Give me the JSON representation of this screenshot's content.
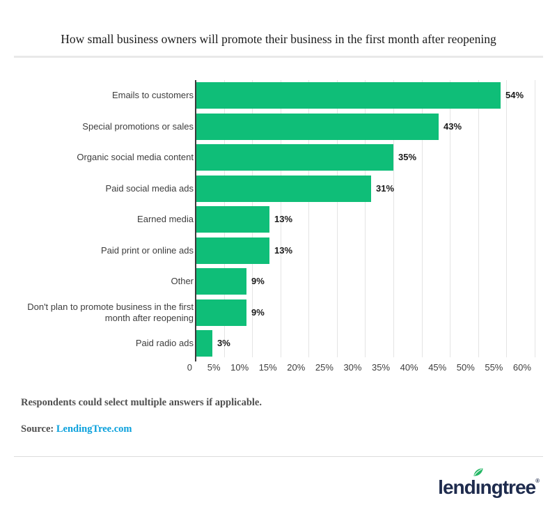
{
  "title": "How small business owners will promote their business in the first month after reopening",
  "chart_data": {
    "type": "bar",
    "orientation": "horizontal",
    "title": "How small business owners will promote their business in the first month after reopening",
    "categories": [
      "Emails to customers",
      "Special promotions or sales",
      "Organic social media content",
      "Paid social media ads",
      "Earned media",
      "Paid print or online ads",
      "Other",
      "Don't plan to promote business in the first month after reopening",
      "Paid radio ads"
    ],
    "values": [
      54,
      43,
      35,
      31,
      13,
      13,
      9,
      9,
      3
    ],
    "value_labels": [
      "54%",
      "43%",
      "35%",
      "31%",
      "13%",
      "13%",
      "9%",
      "9%",
      "3%"
    ],
    "xlabel": "",
    "ylabel": "",
    "xlim": [
      0,
      60
    ],
    "x_tick_step": 5,
    "x_ticks": [
      "0",
      "5%",
      "10%",
      "15%",
      "20%",
      "25%",
      "30%",
      "35%",
      "40%",
      "45%",
      "50%",
      "55%",
      "60%"
    ],
    "grid": true,
    "legend": false,
    "bar_color": "#0fbe78"
  },
  "colors": {
    "bar": "#0fbe78",
    "axis_line": "#3a3a3a",
    "gridline": "#e4e4e4",
    "link": "#09a0dc",
    "wordmark": "#1e2b4d",
    "leaf": "#25b765"
  },
  "footnote": "Respondents could select multiple answers if applicable.",
  "source": {
    "label": "Source:",
    "link_text": "LendingTree.com"
  },
  "logo": {
    "part1": "lend",
    "dotless_i": "ı",
    "part2": "ngtree",
    "registered": "®"
  }
}
